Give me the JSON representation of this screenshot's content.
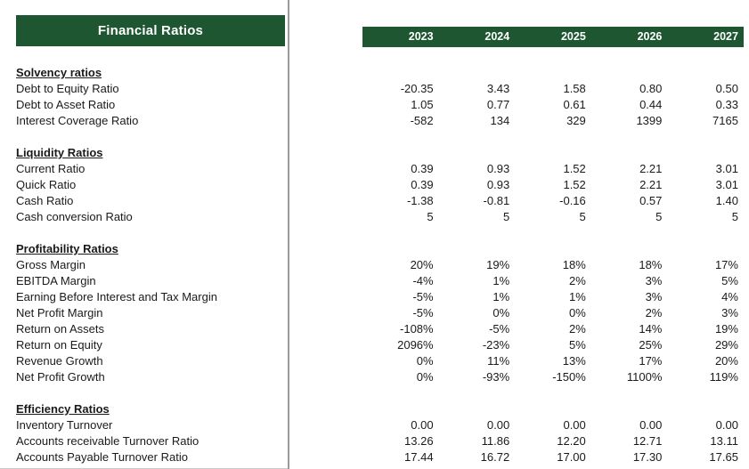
{
  "window": {
    "title": "Financial Ratios"
  },
  "colors": {
    "header_green": "#1E5631",
    "divider_gray": "#9A9A9A",
    "header_text": "#FFFFFF",
    "body_text": "#1A1A1A"
  },
  "years": [
    "2023",
    "2024",
    "2025",
    "2026",
    "2027"
  ],
  "sections": [
    {
      "title": "Solvency ratios",
      "rows": [
        {
          "label": "Debt to Equity Ratio",
          "values": [
            "-20.35",
            "3.43",
            "1.58",
            "0.80",
            "0.50"
          ]
        },
        {
          "label": "Debt to Asset Ratio",
          "values": [
            "1.05",
            "0.77",
            "0.61",
            "0.44",
            "0.33"
          ]
        },
        {
          "label": "Interest Coverage Ratio",
          "values": [
            "-582",
            "134",
            "329",
            "1399",
            "7165"
          ]
        }
      ]
    },
    {
      "title": "Liquidity Ratios",
      "rows": [
        {
          "label": "Current Ratio",
          "values": [
            "0.39",
            "0.93",
            "1.52",
            "2.21",
            "3.01"
          ]
        },
        {
          "label": "Quick Ratio",
          "values": [
            "0.39",
            "0.93",
            "1.52",
            "2.21",
            "3.01"
          ]
        },
        {
          "label": "Cash Ratio",
          "values": [
            "-1.38",
            "-0.81",
            "-0.16",
            "0.57",
            "1.40"
          ]
        },
        {
          "label": "Cash conversion Ratio",
          "values": [
            "5",
            "5",
            "5",
            "5",
            "5"
          ]
        }
      ]
    },
    {
      "title": "Profitability Ratios",
      "rows": [
        {
          "label": "Gross Margin",
          "values": [
            "20%",
            "19%",
            "18%",
            "18%",
            "17%"
          ]
        },
        {
          "label": "EBITDA Margin",
          "values": [
            "-4%",
            "1%",
            "2%",
            "3%",
            "5%"
          ]
        },
        {
          "label": "Earning Before Interest and Tax Margin",
          "values": [
            "-5%",
            "1%",
            "1%",
            "3%",
            "4%"
          ]
        },
        {
          "label": "Net Profit Margin",
          "values": [
            "-5%",
            "0%",
            "0%",
            "2%",
            "3%"
          ]
        },
        {
          "label": "Return on Assets",
          "values": [
            "-108%",
            "-5%",
            "2%",
            "14%",
            "19%"
          ]
        },
        {
          "label": "Return on Equity",
          "values": [
            "2096%",
            "-23%",
            "5%",
            "25%",
            "29%"
          ]
        },
        {
          "label": "Revenue Growth",
          "values": [
            "0%",
            "11%",
            "13%",
            "17%",
            "20%"
          ]
        },
        {
          "label": "Net Profit Growth",
          "values": [
            "0%",
            "-93%",
            "-150%",
            "1100%",
            "119%"
          ]
        }
      ]
    },
    {
      "title": "Efficiency Ratios",
      "rows": [
        {
          "label": "Inventory Turnover",
          "values": [
            "0.00",
            "0.00",
            "0.00",
            "0.00",
            "0.00"
          ]
        },
        {
          "label": "Accounts receivable Turnover Ratio",
          "values": [
            "13.26",
            "11.86",
            "12.20",
            "12.71",
            "13.11"
          ]
        },
        {
          "label": "Accounts Payable Turnover Ratio",
          "values": [
            "17.44",
            "16.72",
            "17.00",
            "17.30",
            "17.65"
          ]
        }
      ]
    }
  ]
}
